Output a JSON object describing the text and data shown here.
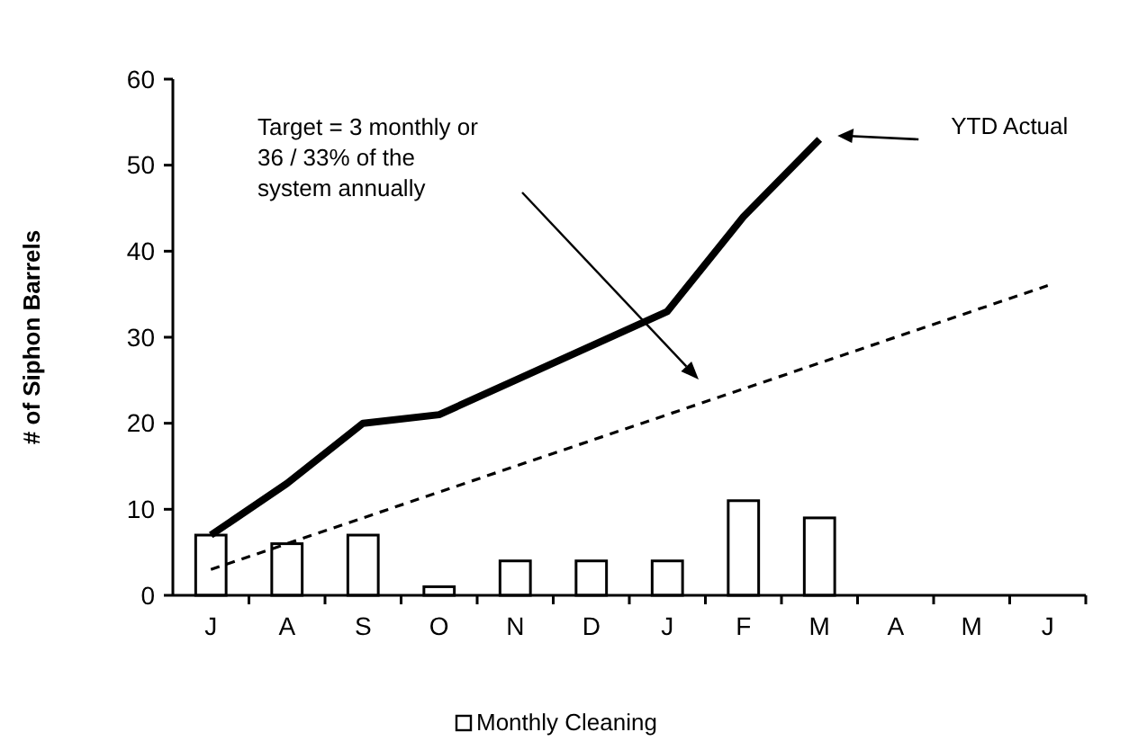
{
  "chart_data": {
    "type": "bar",
    "ylabel": "# of Siphon Barrels",
    "categories": [
      "J",
      "A",
      "S",
      "O",
      "N",
      "D",
      "J",
      "F",
      "M",
      "A",
      "M",
      "J"
    ],
    "series": [
      {
        "name": "Monthly Cleaning",
        "color": "#ffffff",
        "values": [
          7,
          6,
          7,
          1,
          4,
          4,
          4,
          11,
          9,
          null,
          null,
          null
        ]
      },
      {
        "name": "YTD Actual",
        "type": "line",
        "color": "#000000",
        "line_style": "solid",
        "values": [
          7,
          13,
          20,
          21,
          25,
          29,
          33,
          44,
          53,
          null,
          null,
          null
        ]
      },
      {
        "type": "line",
        "color": "#000000",
        "line_style": "dashed",
        "values": [
          3,
          6,
          9,
          12,
          15,
          18,
          21,
          24,
          27,
          30,
          33,
          36
        ]
      }
    ],
    "annotations": [
      "Target = 3 monthly or\n36 / 33% of the\nsystem annually"
    ],
    "ylim": [
      0,
      60
    ],
    "yticks": [
      0,
      10,
      20,
      30,
      40,
      50,
      60
    ],
    "grid": false,
    "legend": "bottom"
  }
}
